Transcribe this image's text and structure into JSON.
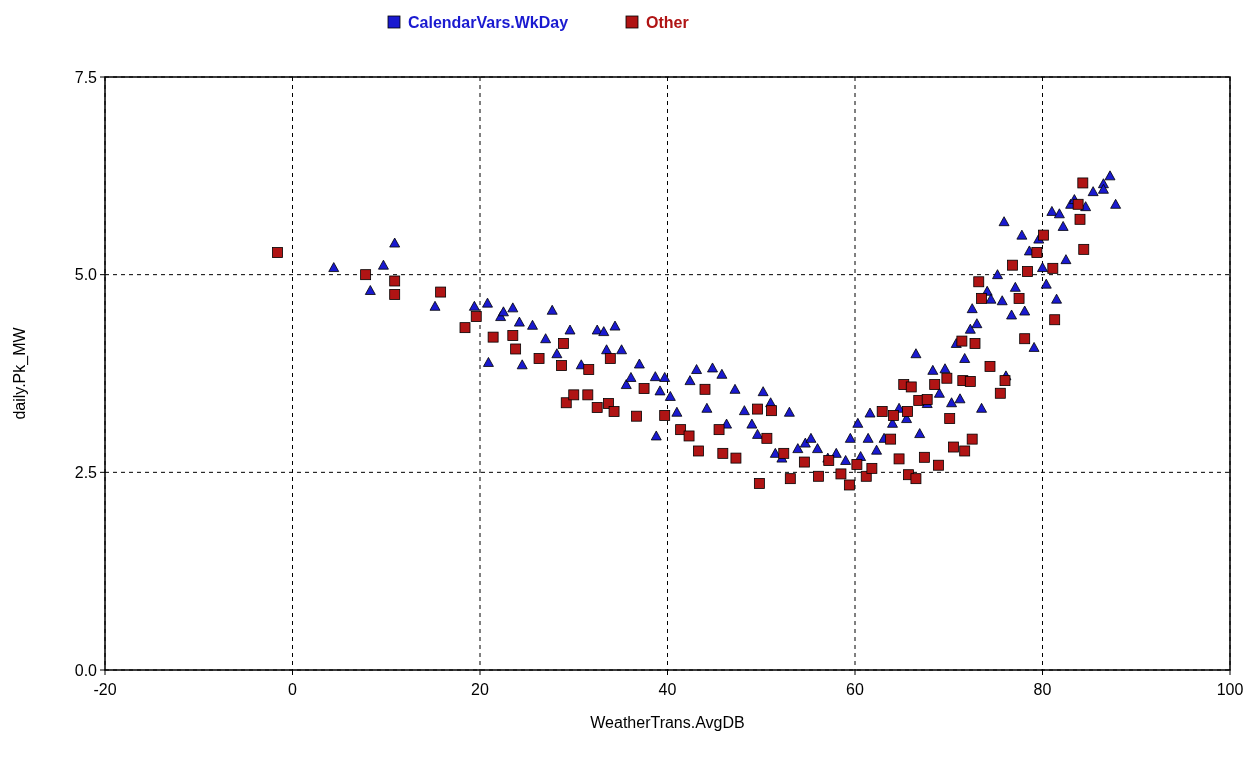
{
  "chart_data": {
    "type": "scatter",
    "xlabel": "WeatherTrans.AvgDB",
    "ylabel": "daily.Pk_MW",
    "xlim": [
      -20,
      100
    ],
    "xticks": [
      -20,
      0,
      20,
      40,
      60,
      80,
      100
    ],
    "ylim": [
      0,
      7.5
    ],
    "yticks": [
      {
        "value": 0,
        "label": "0.0"
      },
      2.5,
      {
        "value": 5,
        "label": "5.0"
      },
      7.5
    ],
    "grid": true,
    "line_style": "dashed",
    "legend": "top",
    "series": [
      {
        "name": "CalendarVars.WkDay",
        "color": "#1a1ad0",
        "marker": "triangle",
        "x": [
          4.4,
          8.3,
          9.7,
          10.9,
          15.2,
          19.4,
          20.8,
          20.9,
          22.2,
          22.5,
          23.5,
          24.2,
          24.5,
          25.6,
          27,
          27.7,
          28.2,
          29.6,
          30.8,
          32.5,
          33.2,
          33.5,
          34.4,
          35.1,
          35.6,
          36.1,
          37,
          38.7,
          39.2,
          39.7,
          40.3,
          41,
          38.8,
          42.4,
          43.1,
          44.2,
          44.8,
          45.8,
          46.3,
          47.2,
          48.2,
          49,
          49.6,
          50.2,
          51,
          51.5,
          52.2,
          53,
          53.9,
          54.7,
          55.3,
          56,
          57.1,
          58,
          59,
          59.5,
          60.3,
          60.6,
          61.4,
          61.6,
          62.3,
          63.1,
          64,
          64.7,
          65.5,
          66.5,
          66.9,
          67.7,
          68.3,
          69,
          69.6,
          70.3,
          70.8,
          71.2,
          71.7,
          72.3,
          72.5,
          73,
          73.5,
          74.1,
          74.5,
          75.2,
          75.7,
          75.9,
          76.1,
          76.7,
          77.1,
          77.8,
          78.1,
          78.6,
          79.1,
          79.6,
          80,
          80.4,
          81,
          81.5,
          81.8,
          82.2,
          82.5,
          83,
          83.4,
          84.6,
          85.4,
          86.5,
          87.2,
          87.8,
          86.5
        ],
        "values": [
          5.09,
          4.8,
          5.12,
          5.4,
          4.6,
          4.6,
          4.64,
          3.89,
          4.47,
          4.53,
          4.58,
          4.4,
          3.86,
          4.36,
          4.19,
          4.55,
          4,
          4.3,
          3.86,
          4.3,
          4.28,
          4.05,
          4.35,
          4.05,
          3.61,
          3.7,
          3.87,
          3.71,
          3.53,
          3.7,
          3.46,
          3.26,
          2.96,
          3.66,
          3.8,
          3.31,
          3.82,
          3.74,
          3.11,
          3.55,
          3.28,
          3.11,
          2.98,
          3.52,
          3.38,
          2.74,
          2.68,
          3.26,
          2.8,
          2.87,
          2.93,
          2.8,
          2.68,
          2.74,
          2.65,
          2.93,
          3.12,
          2.7,
          2.93,
          3.25,
          2.78,
          2.93,
          3.12,
          3.31,
          3.18,
          4,
          2.99,
          3.37,
          3.79,
          3.5,
          3.81,
          3.38,
          4.13,
          3.43,
          3.94,
          4.31,
          4.57,
          4.38,
          3.31,
          4.79,
          4.69,
          5,
          4.67,
          5.67,
          3.72,
          4.49,
          4.84,
          5.5,
          4.54,
          5.3,
          4.08,
          5.45,
          5.09,
          4.88,
          5.8,
          4.69,
          5.77,
          5.61,
          5.19,
          5.89,
          5.95,
          5.86,
          6.05,
          6.15,
          6.25,
          5.89,
          6.08
        ]
      },
      {
        "name": "Other",
        "color": "#b01414",
        "marker": "square",
        "x": [
          -1.6,
          7.8,
          10.9,
          10.9,
          15.8,
          18.4,
          19.6,
          21.4,
          23.5,
          23.8,
          26.3,
          28.7,
          28.9,
          29.2,
          30,
          31.5,
          31.6,
          32.5,
          33.7,
          33.9,
          34.3,
          36.7,
          37.5,
          39.7,
          41.4,
          42.3,
          43.3,
          44,
          45.5,
          45.9,
          47.3,
          49.6,
          49.8,
          50.6,
          51.1,
          52.4,
          53.1,
          54.6,
          56.1,
          57.2,
          58.5,
          59.4,
          60.2,
          61.2,
          61.8,
          62.9,
          63.8,
          64.1,
          64.7,
          65.2,
          65.6,
          65.7,
          66,
          66.5,
          66.8,
          67.4,
          67.7,
          68.5,
          68.9,
          69.8,
          70.1,
          70.5,
          71.4,
          71.5,
          71.7,
          72.3,
          72.5,
          72.8,
          73.2,
          73.5,
          74.4,
          75.5,
          76,
          76.8,
          77.5,
          78.1,
          78.4,
          79.4,
          80.1,
          81.1,
          81.3,
          83.8,
          84.3,
          84.4,
          84
        ],
        "values": [
          5.28,
          5,
          4.92,
          4.75,
          4.78,
          4.33,
          4.47,
          4.21,
          4.23,
          4.06,
          3.94,
          3.85,
          4.13,
          3.38,
          3.48,
          3.48,
          3.8,
          3.32,
          3.37,
          3.94,
          3.27,
          3.21,
          3.56,
          3.22,
          3.04,
          2.96,
          2.77,
          3.55,
          3.04,
          2.74,
          2.68,
          3.3,
          2.36,
          2.93,
          3.28,
          2.74,
          2.42,
          2.63,
          2.45,
          2.65,
          2.48,
          2.34,
          2.6,
          2.45,
          2.55,
          3.27,
          2.92,
          3.22,
          2.67,
          3.61,
          3.27,
          2.47,
          3.58,
          2.42,
          3.41,
          2.69,
          3.42,
          3.61,
          2.59,
          3.69,
          3.18,
          2.82,
          4.16,
          3.66,
          2.77,
          3.65,
          2.92,
          4.13,
          4.91,
          4.7,
          3.84,
          3.5,
          3.66,
          5.12,
          4.7,
          4.19,
          5.04,
          5.28,
          5.5,
          5.08,
          4.43,
          5.89,
          6.16,
          5.32,
          5.7
        ]
      }
    ]
  }
}
